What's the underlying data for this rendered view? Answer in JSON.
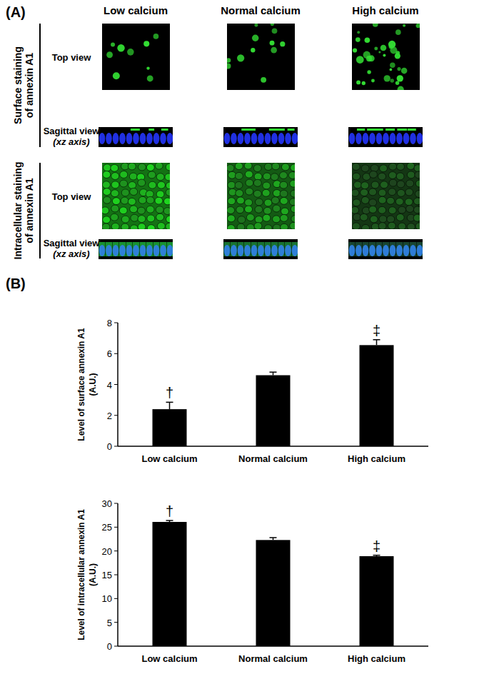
{
  "figure": {
    "panel_a_label": "(A)",
    "panel_b_label": "(B)",
    "columns": [
      "Low calcium",
      "Normal calcium",
      "High calcium"
    ],
    "rows": [
      {
        "label_lines": [
          "Surface staining",
          "of annexin A1"
        ],
        "top_view": "Top view",
        "sagittal_view": "Sagittal view",
        "axis_note": "(xz axis)"
      },
      {
        "label_lines": [
          "Intracellular staining",
          "of annexin A1"
        ],
        "top_view": "Top view",
        "sagittal_view": "Sagittal view",
        "axis_note": "(xz axis)"
      }
    ]
  },
  "chart_data": [
    {
      "type": "bar",
      "categories": [
        "Low calcium",
        "Normal calcium",
        "High calcium"
      ],
      "values": [
        2.4,
        4.6,
        6.55
      ],
      "errors": [
        0.45,
        0.2,
        0.35
      ],
      "annotations": [
        "†",
        null,
        "‡"
      ],
      "y_label": [
        "Level of surface annexin A1",
        "(A.U.)"
      ],
      "color": "#000000",
      "ylim": [
        0,
        8
      ],
      "yticks": [
        0,
        2,
        4,
        6,
        8
      ],
      "grid": false
    },
    {
      "type": "bar",
      "categories": [
        "Low calcium",
        "Normal calcium",
        "High calcium"
      ],
      "values": [
        26.1,
        22.3,
        18.9
      ],
      "errors": [
        0.3,
        0.5,
        0.2
      ],
      "annotations": [
        "†",
        null,
        "‡"
      ],
      "y_label": [
        "Level of intracellular annexin A1",
        "(A.U.)"
      ],
      "color": "#000000",
      "ylim": [
        0,
        30
      ],
      "yticks": [
        0,
        5,
        10,
        15,
        20,
        25,
        30
      ],
      "grid": false
    }
  ]
}
